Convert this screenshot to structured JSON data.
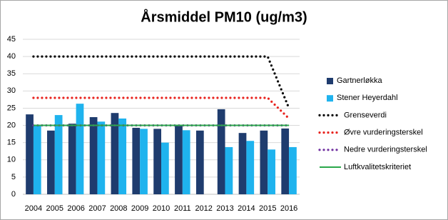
{
  "chart_data": {
    "type": "bar",
    "title": "Årsmiddel PM10 (ug/m3)",
    "categories": [
      "2004",
      "2005",
      "2006",
      "2007",
      "2008",
      "2009",
      "2010",
      "2011",
      "2012",
      "2013",
      "2014",
      "2015",
      "2016"
    ],
    "ylim": [
      0,
      45
    ],
    "yticks": [
      0,
      5,
      10,
      15,
      20,
      25,
      30,
      35,
      40,
      45
    ],
    "grid": true,
    "legend": "right",
    "series": [
      {
        "name": "Gartnerløkka",
        "type": "bar",
        "color": "#1f3c6e",
        "values": [
          23.2,
          18.5,
          20.5,
          22.4,
          23.6,
          19.3,
          19.0,
          19.8,
          18.5,
          24.7,
          17.8,
          18.5,
          19.1
        ]
      },
      {
        "name": "Stener Heyerdahl",
        "type": "bar",
        "color": "#1fb3ee",
        "values": [
          20.0,
          23.0,
          26.3,
          21.1,
          22.0,
          19.0,
          15.0,
          18.6,
          null,
          13.7,
          15.5,
          13.0,
          13.7
        ]
      },
      {
        "name": "Grenseverdi",
        "type": "line",
        "dash": "dotted",
        "color": "#000000",
        "values": [
          40,
          40,
          40,
          40,
          40,
          40,
          40,
          40,
          40,
          40,
          40,
          40,
          25
        ]
      },
      {
        "name": "Øvre vurderingsterskel",
        "type": "line",
        "dash": "dotted",
        "color": "#e8231e",
        "values": [
          28,
          28,
          28,
          28,
          28,
          28,
          28,
          28,
          28,
          28,
          28,
          28,
          22
        ]
      },
      {
        "name": "Nedre vurderingsterskel",
        "type": "line",
        "dash": "dotted",
        "color": "#7030a0",
        "values": [
          20,
          20,
          20,
          20,
          20,
          20,
          20,
          20,
          20,
          20,
          20,
          20,
          20
        ]
      },
      {
        "name": "Luftkvalitetskriteriet",
        "type": "line",
        "dash": "solid",
        "color": "#2aa84a",
        "values": [
          20,
          20,
          20,
          20,
          20,
          20,
          20,
          20,
          20,
          20,
          20,
          20,
          20
        ]
      }
    ]
  }
}
